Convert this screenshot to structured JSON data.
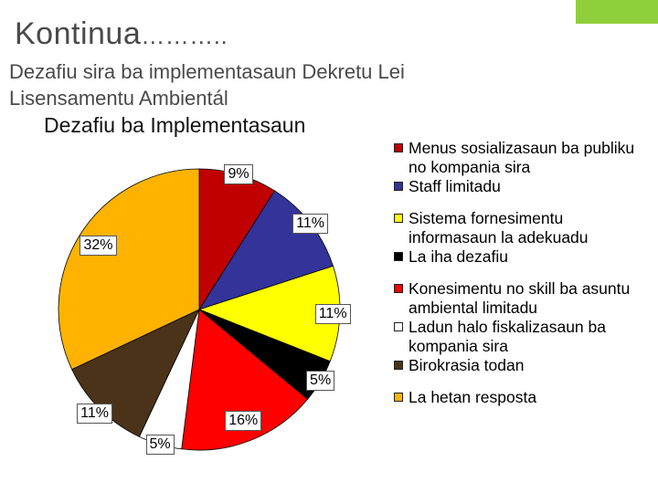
{
  "slide": {
    "title": "Kontinua",
    "title_suffix": "………..",
    "subtitle": "Dezafiu sira ba implementasaun Dekretu Lei Lisensamentu Ambientál",
    "accent_color": "#8fcf3c"
  },
  "chart_data": {
    "type": "pie",
    "title": "Dezafiu ba Implementasaun",
    "categories": [
      "Menus sosializasaun ba publiku no kompania sira",
      "Staff limitadu",
      "Sistema fornesimentu informasaun la adekuadu",
      "La iha dezafiu",
      "Konesimentu no skill ba asuntu ambiental limitadu",
      "Ladun halo fiskalizasaun ba kompania sira",
      "Birokrasia todan",
      "La hetan resposta"
    ],
    "values": [
      9,
      11,
      11,
      5,
      16,
      5,
      11,
      32
    ],
    "labels": [
      "9%",
      "11%",
      "11%",
      "5%",
      "16%",
      "5%",
      "11%",
      "32%"
    ],
    "colors": [
      "#c00000",
      "#333399",
      "#ffff00",
      "#000000",
      "#ff0000",
      "#ffffff",
      "#4a3319",
      "#ffb300"
    ],
    "start_angle_deg": 0,
    "direction": "clockwise",
    "legend_position": "right"
  }
}
